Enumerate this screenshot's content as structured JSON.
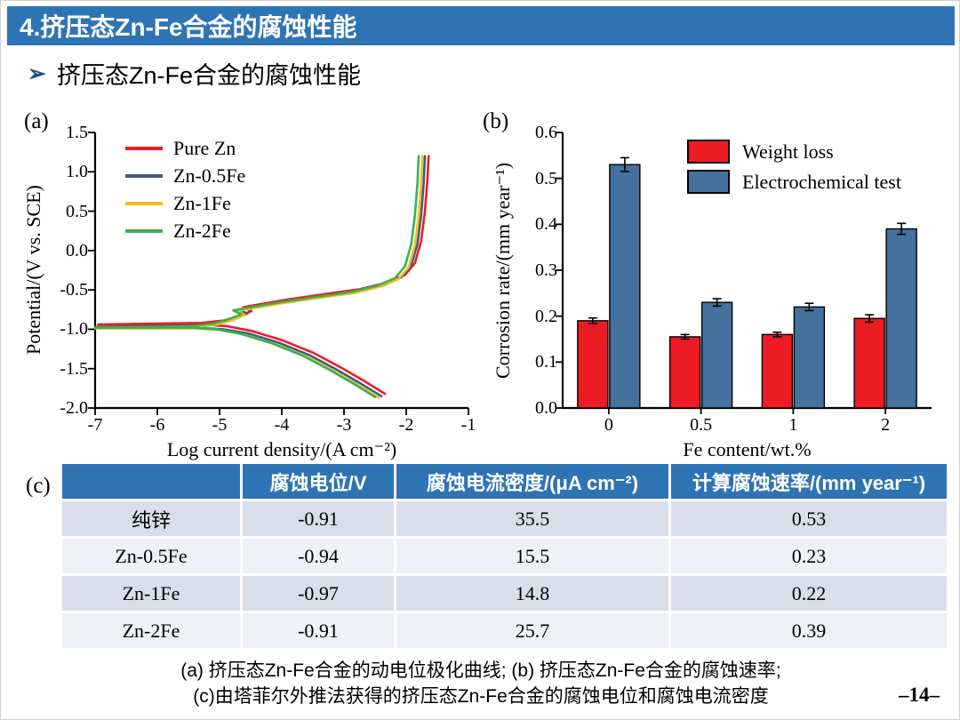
{
  "slide": {
    "header": "4.挤压态Zn-Fe合金的腐蚀性能",
    "bullet_icon": "➢",
    "bullet": "挤压态Zn-Fe合金的腐蚀性能",
    "panel_labels": {
      "a": "(a)",
      "b": "(b)",
      "c": "(c)"
    },
    "caption_line1": "(a) 挤压态Zn-Fe合金的动电位极化曲线; (b) 挤压态Zn-Fe合金的腐蚀速率;",
    "caption_line2": "(c)由塔菲尔外推法获得的挤压态Zn-Fe合金的腐蚀电位和腐蚀电流密度",
    "page_number": "–14–"
  },
  "colors": {
    "accent_blue": "#2e74b5",
    "table_row_dark": "#d9deeb",
    "table_row_light": "#eef1f7"
  },
  "chart_data": [
    {
      "id": "polarization-curves",
      "type": "line",
      "xlabel": "Log current density/(A cm⁻²)",
      "ylabel": "Potential/(V vs. SCE)",
      "xlim": [
        -7,
        -1
      ],
      "ylim": [
        -2.0,
        1.5
      ],
      "xticks": [
        "-7",
        "-6",
        "-5",
        "-4",
        "-3",
        "-2",
        "-1"
      ],
      "yticks": [
        "1.5",
        "1.0",
        "0.5",
        "0.0",
        "-0.5",
        "-1.0",
        "-1.5",
        "-2.0"
      ],
      "grid": false,
      "legend_position": "upper-left",
      "series": [
        {
          "name": "Pure Zn",
          "color": "#ed1c24",
          "corrosion_potential_V": -0.91,
          "points": [
            [
              -2.34,
              -1.82
            ],
            [
              -2.69,
              -1.65
            ],
            [
              -3.04,
              -1.49
            ],
            [
              -3.49,
              -1.3
            ],
            [
              -3.99,
              -1.14
            ],
            [
              -4.49,
              -1.02
            ],
            [
              -4.89,
              -0.96
            ],
            [
              -5.29,
              -0.94
            ],
            [
              -6.95,
              -0.94
            ],
            [
              -5.29,
              -0.92
            ],
            [
              -4.94,
              -0.89
            ],
            [
              -4.72,
              -0.84
            ],
            [
              -4.49,
              -0.77
            ],
            [
              -4.62,
              -0.72
            ],
            [
              -4.34,
              -0.68
            ],
            [
              -3.89,
              -0.62
            ],
            [
              -3.29,
              -0.55
            ],
            [
              -2.74,
              -0.49
            ],
            [
              -2.32,
              -0.41
            ],
            [
              -2.02,
              -0.31
            ],
            [
              -1.86,
              -0.16
            ],
            [
              -1.76,
              0.12
            ],
            [
              -1.7,
              0.49
            ],
            [
              -1.66,
              0.89
            ],
            [
              -1.64,
              1.2
            ]
          ]
        },
        {
          "name": "Zn-0.5Fe",
          "color": "#3d5c85",
          "corrosion_potential_V": -0.94,
          "points": [
            [
              -2.4,
              -1.85
            ],
            [
              -2.75,
              -1.68
            ],
            [
              -3.1,
              -1.52
            ],
            [
              -3.55,
              -1.33
            ],
            [
              -4.05,
              -1.17
            ],
            [
              -4.55,
              -1.05
            ],
            [
              -4.95,
              -1.0
            ],
            [
              -5.35,
              -0.98
            ],
            [
              -7.0,
              -0.97
            ],
            [
              -5.35,
              -0.95
            ],
            [
              -5.0,
              -0.93
            ],
            [
              -4.78,
              -0.88
            ],
            [
              -4.55,
              -0.8
            ],
            [
              -4.68,
              -0.76
            ],
            [
              -4.4,
              -0.72
            ],
            [
              -3.95,
              -0.66
            ],
            [
              -3.35,
              -0.59
            ],
            [
              -2.8,
              -0.52
            ],
            [
              -2.38,
              -0.45
            ],
            [
              -2.08,
              -0.34
            ],
            [
              -1.92,
              -0.19
            ],
            [
              -1.82,
              0.08
            ],
            [
              -1.76,
              0.45
            ],
            [
              -1.72,
              0.85
            ],
            [
              -1.7,
              1.2
            ]
          ]
        },
        {
          "name": "Zn-1Fe",
          "color": "#f0c11e",
          "corrosion_potential_V": -0.97,
          "points": [
            [
              -2.44,
              -1.87
            ],
            [
              -2.79,
              -1.7
            ],
            [
              -3.14,
              -1.54
            ],
            [
              -3.59,
              -1.35
            ],
            [
              -4.09,
              -1.19
            ],
            [
              -4.59,
              -1.07
            ],
            [
              -4.99,
              -1.01
            ],
            [
              -5.39,
              -0.99
            ],
            [
              -7.0,
              -0.99
            ],
            [
              -5.39,
              -0.97
            ],
            [
              -5.04,
              -0.94
            ],
            [
              -4.82,
              -0.89
            ],
            [
              -4.59,
              -0.82
            ],
            [
              -4.72,
              -0.77
            ],
            [
              -4.44,
              -0.73
            ],
            [
              -3.99,
              -0.67
            ],
            [
              -3.39,
              -0.6
            ],
            [
              -2.84,
              -0.54
            ],
            [
              -2.42,
              -0.46
            ],
            [
              -2.12,
              -0.36
            ],
            [
              -1.96,
              -0.21
            ],
            [
              -1.86,
              0.07
            ],
            [
              -1.8,
              0.44
            ],
            [
              -1.76,
              0.84
            ],
            [
              -1.74,
              1.2
            ]
          ]
        },
        {
          "name": "Zn-2Fe",
          "color": "#3bb054",
          "corrosion_potential_V": -0.91,
          "points": [
            [
              -2.5,
              -1.86
            ],
            [
              -2.85,
              -1.69
            ],
            [
              -3.2,
              -1.53
            ],
            [
              -3.65,
              -1.34
            ],
            [
              -4.15,
              -1.18
            ],
            [
              -4.65,
              -1.06
            ],
            [
              -5.05,
              -1.0
            ],
            [
              -5.45,
              -0.98
            ],
            [
              -7.0,
              -0.98
            ],
            [
              -5.45,
              -0.96
            ],
            [
              -5.1,
              -0.93
            ],
            [
              -4.88,
              -0.88
            ],
            [
              -4.65,
              -0.81
            ],
            [
              -4.78,
              -0.76
            ],
            [
              -4.5,
              -0.72
            ],
            [
              -4.05,
              -0.66
            ],
            [
              -3.45,
              -0.59
            ],
            [
              -2.9,
              -0.53
            ],
            [
              -2.48,
              -0.45
            ],
            [
              -2.18,
              -0.35
            ],
            [
              -2.02,
              -0.2
            ],
            [
              -1.92,
              0.08
            ],
            [
              -1.86,
              0.45
            ],
            [
              -1.82,
              0.85
            ],
            [
              -1.8,
              1.2
            ]
          ]
        }
      ]
    },
    {
      "id": "corrosion-rate-bars",
      "type": "bar",
      "xlabel": "Fe content/wt.%",
      "ylabel": "Corrosion rate/(mm year⁻¹)",
      "categories": [
        "0",
        "0.5",
        "1",
        "2"
      ],
      "ylim": [
        0,
        0.6
      ],
      "yticks": [
        "0.6",
        "0.5",
        "0.4",
        "0.3",
        "0.2",
        "0.1",
        "0.0"
      ],
      "grid": false,
      "legend_position": "upper-right",
      "series": [
        {
          "name": "Weight loss",
          "color": "#ed1c24",
          "values": [
            0.19,
            0.155,
            0.16,
            0.195
          ],
          "errors": [
            0.006,
            0.005,
            0.005,
            0.008
          ]
        },
        {
          "name": "Electrochemical test",
          "color": "#44719e",
          "values": [
            0.53,
            0.23,
            0.22,
            0.39
          ],
          "errors": [
            0.015,
            0.008,
            0.008,
            0.012
          ]
        }
      ]
    }
  ],
  "table": {
    "headers": [
      "",
      "腐蚀电位/V",
      "腐蚀电流密度/(μA cm⁻²)",
      "计算腐蚀速率/(mm year⁻¹)"
    ],
    "rows": [
      [
        "纯锌",
        "-0.91",
        "35.5",
        "0.53"
      ],
      [
        "Zn-0.5Fe",
        "-0.94",
        "15.5",
        "0.23"
      ],
      [
        "Zn-1Fe",
        "-0.97",
        "14.8",
        "0.22"
      ],
      [
        "Zn-2Fe",
        "-0.91",
        "25.7",
        "0.39"
      ]
    ]
  }
}
